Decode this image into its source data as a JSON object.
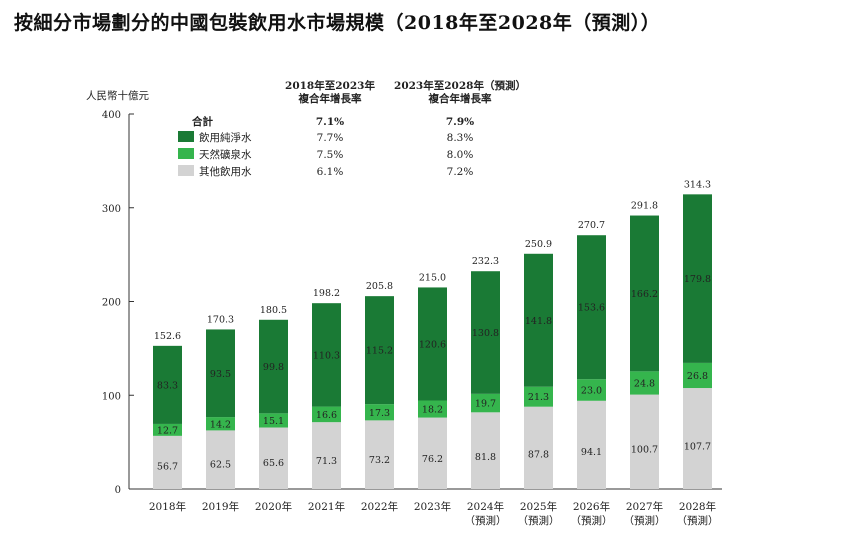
{
  "title": "按細分市場劃分的中國包裝飲用水市場規模（2018年至2028年（預測））",
  "colors": {
    "purified": "#1a7a35",
    "mineral": "#35b54d",
    "other": "#d3d3d3"
  },
  "chart_data": {
    "type": "bar",
    "stacked": true,
    "title": "按細分市場劃分的中國包裝飲用水市場規模（2018年至2028年（預測））",
    "ylabel": "人民幣十億元",
    "ylim": [
      0,
      400
    ],
    "yticks": [
      0,
      100,
      200,
      300,
      400
    ],
    "categories": [
      "2018年",
      "2019年",
      "2020年",
      "2021年",
      "2022年",
      "2023年",
      "2024年\n（預測）",
      "2025年\n（預測）",
      "2026年\n（預測）",
      "2027年\n（預測）",
      "2028年\n（預測）"
    ],
    "series": [
      {
        "name": "其他飲用水",
        "key": "other",
        "values": [
          56.7,
          62.5,
          65.6,
          71.3,
          73.2,
          76.2,
          81.8,
          87.8,
          94.1,
          100.7,
          107.7
        ]
      },
      {
        "name": "天然礦泉水",
        "key": "mineral",
        "values": [
          12.7,
          14.2,
          15.1,
          16.6,
          17.3,
          18.2,
          19.7,
          21.3,
          23.0,
          24.8,
          26.8
        ]
      },
      {
        "name": "飲用純淨水",
        "key": "purified",
        "values": [
          83.3,
          93.5,
          99.8,
          110.3,
          115.2,
          120.6,
          130.8,
          141.8,
          153.6,
          166.2,
          179.8
        ]
      }
    ],
    "totals": [
      152.6,
      170.3,
      180.5,
      198.2,
      205.8,
      215.0,
      232.3,
      250.9,
      270.7,
      291.8,
      314.3
    ],
    "grid": false,
    "cagr_table": {
      "headers": [
        "2018年至2023年\n複合年增長率",
        "2023年至2028年（預測）\n複合年增長率"
      ],
      "rows": [
        {
          "label": "合計",
          "key": "total",
          "values": [
            "7.1%",
            "7.9%"
          ]
        },
        {
          "label": "飲用純淨水",
          "key": "purified",
          "values": [
            "7.7%",
            "8.3%"
          ]
        },
        {
          "label": "天然礦泉水",
          "key": "mineral",
          "values": [
            "7.5%",
            "8.0%"
          ]
        },
        {
          "label": "其他飲用水",
          "key": "other",
          "values": [
            "6.1%",
            "7.2%"
          ]
        }
      ]
    }
  }
}
